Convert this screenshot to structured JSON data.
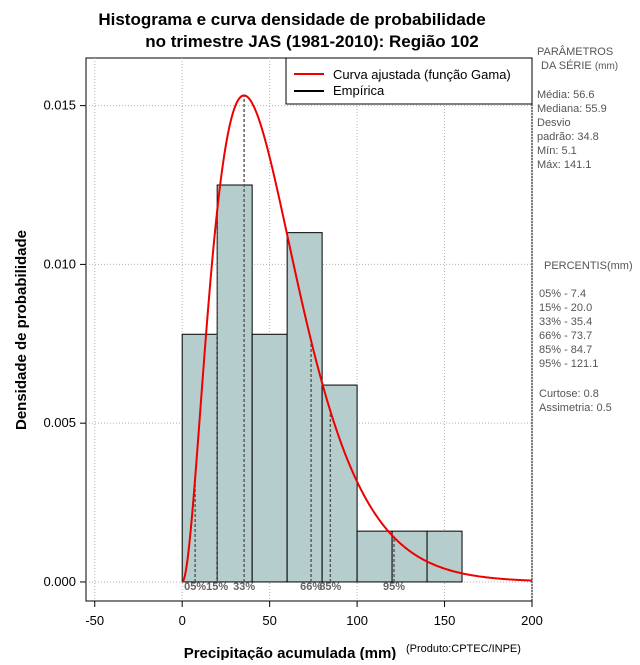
{
  "chart_data": {
    "type": "histogram",
    "title_line1": "Histograma e curva densidade de probabilidade",
    "title_line2": "no trimestre JAS (1981-2010): Região 102",
    "xlabel": "Precipitação acumulada (mm)",
    "ylabel": "Densidade de probabilidade",
    "credit": "(Produto:CPTEC/INPE)",
    "xlim": [
      -55,
      200
    ],
    "ylim": [
      -0.0006,
      0.0165
    ],
    "xticks": [
      -50,
      0,
      50,
      100,
      150,
      200
    ],
    "xtick_labels": [
      "-50",
      "0",
      "50",
      "100",
      "150",
      "200"
    ],
    "yticks": [
      0.0,
      0.005,
      0.01,
      0.015
    ],
    "ytick_labels": [
      "0.000",
      "0.005",
      "0.010",
      "0.015"
    ],
    "bins": [
      {
        "start": 0,
        "end": 20,
        "density": 0.0078
      },
      {
        "start": 20,
        "end": 40,
        "density": 0.0125
      },
      {
        "start": 40,
        "end": 60,
        "density": 0.0078
      },
      {
        "start": 60,
        "end": 80,
        "density": 0.011
      },
      {
        "start": 80,
        "end": 100,
        "density": 0.0062
      },
      {
        "start": 100,
        "end": 120,
        "density": 0.0016
      },
      {
        "start": 120,
        "end": 140,
        "density": 0.0016
      },
      {
        "start": 140,
        "end": 160,
        "density": 0.0016
      }
    ],
    "gamma_fit": {
      "shape": 3.0,
      "mean": 53.0
    },
    "legend": [
      {
        "label": "Curva ajustada (função Gama)",
        "color": "#ee0000"
      },
      {
        "label": "Empírica",
        "color": "#000000"
      }
    ],
    "percentile_lines": [
      {
        "value": 7.4,
        "label": "05%"
      },
      {
        "value": 20.0,
        "label": "15%"
      },
      {
        "value": 35.4,
        "label": "33%"
      },
      {
        "value": 73.7,
        "label": "66%"
      },
      {
        "value": 84.7,
        "label": "85%"
      },
      {
        "value": 121.1,
        "label": "95%"
      }
    ],
    "colors": {
      "bar_fill": "#b5cecd",
      "curve": "#ee0000",
      "grid": "#b0b0b0",
      "percentile": "#555555"
    }
  },
  "side_panel": {
    "params_header1": "PARÂMETROS",
    "params_header2": "DA SÉRIE",
    "params_unit": "(mm)",
    "media": "Média:  56.6",
    "mediana": "Mediana:  55.9",
    "desvio1": "Desvio",
    "desvio2": "padrão:  34.8",
    "min": "Mín:  5.1",
    "max": "Máx:  141.1",
    "percentis_header": "PERCENTIS(mm)",
    "p05": "05% -  7.4",
    "p15": "15% -  20.0",
    "p33": "33% -  35.4",
    "p66": "66% -  73.7",
    "p85": "85% -  84.7",
    "p95": "95% -  121.1",
    "curtose": "Curtose:  0.8",
    "assimetria": "Assimetria:  0.5"
  }
}
